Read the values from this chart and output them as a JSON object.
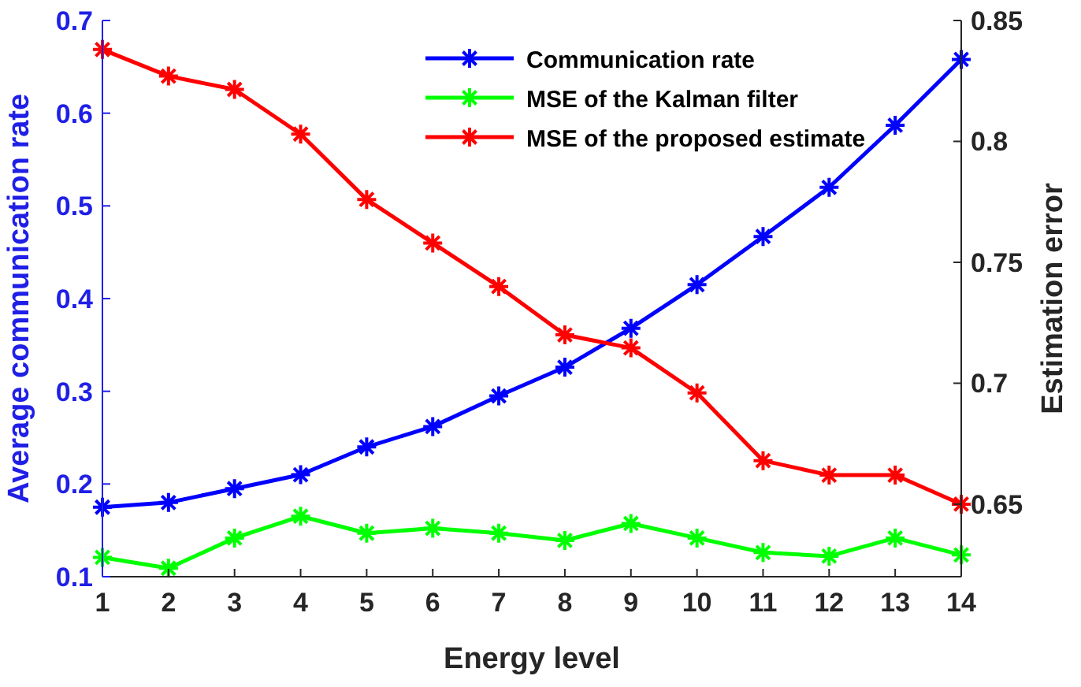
{
  "chart_data": {
    "type": "line",
    "xlabel": "Energy level",
    "ylabel": "Average communication rate",
    "y2label": "Estimation error",
    "x": [
      1,
      2,
      3,
      4,
      5,
      6,
      7,
      8,
      9,
      10,
      11,
      12,
      13,
      14
    ],
    "xlim": [
      1,
      14
    ],
    "xticks": [
      1,
      2,
      3,
      4,
      5,
      6,
      7,
      8,
      9,
      10,
      11,
      12,
      13,
      14
    ],
    "ylim": [
      0.1,
      0.7
    ],
    "yticks": [
      0.1,
      0.2,
      0.3,
      0.4,
      0.5,
      0.6,
      0.7
    ],
    "y2lim": [
      0.62,
      0.85
    ],
    "y2ticks": [
      0.65,
      0.7,
      0.75,
      0.8,
      0.85
    ],
    "grid": false,
    "legend": "top right",
    "marker": "cross",
    "line_style": "solid",
    "series": [
      {
        "name": "Communication rate",
        "color": "#0000ff",
        "values": [
          0.175,
          0.18,
          0.195,
          0.21,
          0.24,
          0.262,
          0.295,
          0.326,
          0.368,
          0.415,
          0.467,
          0.52,
          0.587,
          0.658
        ]
      },
      {
        "name": "MSE of the Kalman filter",
        "color": "#00ff00",
        "axis": "y2",
        "values": [
          0.628,
          0.6235,
          0.636,
          0.645,
          0.638,
          0.64,
          0.638,
          0.635,
          0.642,
          0.636,
          0.63,
          0.6285,
          0.636,
          0.629
        ]
      },
      {
        "name": "MSE of the proposed estimate",
        "color": "#ff0000",
        "axis": "y2",
        "values": [
          0.838,
          0.827,
          0.8215,
          0.803,
          0.776,
          0.758,
          0.74,
          0.72,
          0.7146,
          0.696,
          0.668,
          0.662,
          0.662,
          0.65
        ]
      }
    ]
  }
}
